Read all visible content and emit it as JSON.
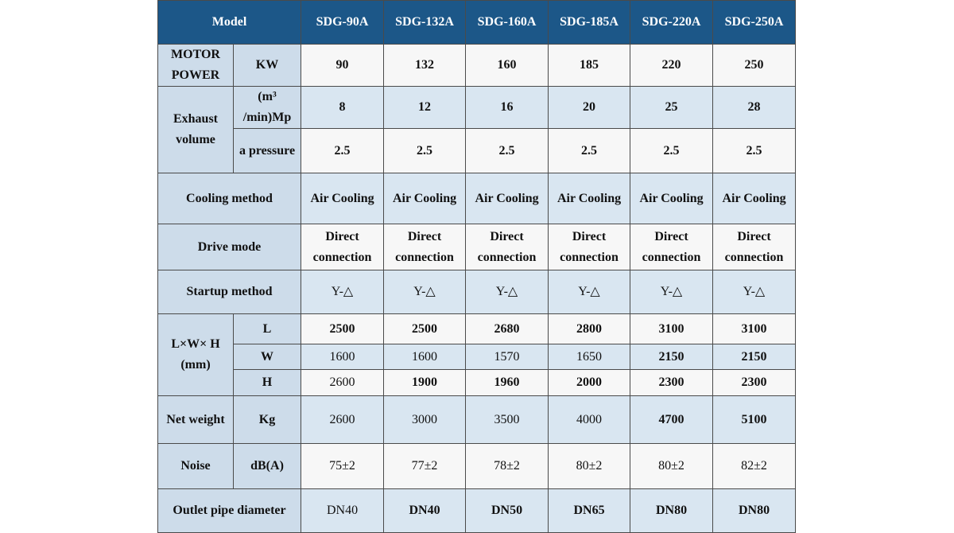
{
  "table": {
    "header": [
      "Model",
      "SDG-90A",
      "SDG-132A",
      "SDG-160A",
      "SDG-185A",
      "SDG-220A",
      "SDG-250A"
    ],
    "rows": [
      [
        "MOTOR POWER",
        "KW",
        90,
        132,
        160,
        185,
        220,
        250
      ],
      [
        "Exhaust volume",
        "(m³ /min)Mp",
        8,
        12,
        16,
        20,
        25,
        28
      ],
      [
        "a pressure",
        2.5,
        2.5,
        2.5,
        2.5,
        2.5,
        2.5
      ],
      [
        "Cooling method",
        "Air Cooling",
        "Air Cooling",
        "Air Cooling",
        "Air Cooling",
        "Air Cooling",
        "Air Cooling"
      ],
      [
        "Drive mode",
        "Direct connection",
        "Direct connection",
        "Direct connection",
        "Direct connection",
        "Direct connection",
        "Direct connection"
      ],
      [
        "Startup method",
        "Y-△",
        "Y-△",
        "Y-△",
        "Y-△",
        "Y-△",
        "Y-△"
      ],
      [
        "L×W× H (mm)",
        "L",
        2500,
        2500,
        2680,
        2800,
        3100,
        3100
      ],
      [
        "W",
        1600,
        1600,
        1570,
        1650,
        2150,
        2150
      ],
      [
        "H",
        2600,
        1900,
        1960,
        2000,
        2300,
        2300
      ],
      [
        "Net weight",
        "Kg",
        2600,
        3000,
        3500,
        4000,
        4700,
        5100
      ],
      [
        "Noise",
        "dB(A)",
        "75±2",
        "77±2",
        "78±2",
        "80±2",
        "80±2",
        "82±2"
      ],
      [
        "Outlet pipe diameter",
        "DN40",
        "DN40",
        "DN50",
        "DN65",
        "DN80",
        "DN80"
      ]
    ]
  }
}
